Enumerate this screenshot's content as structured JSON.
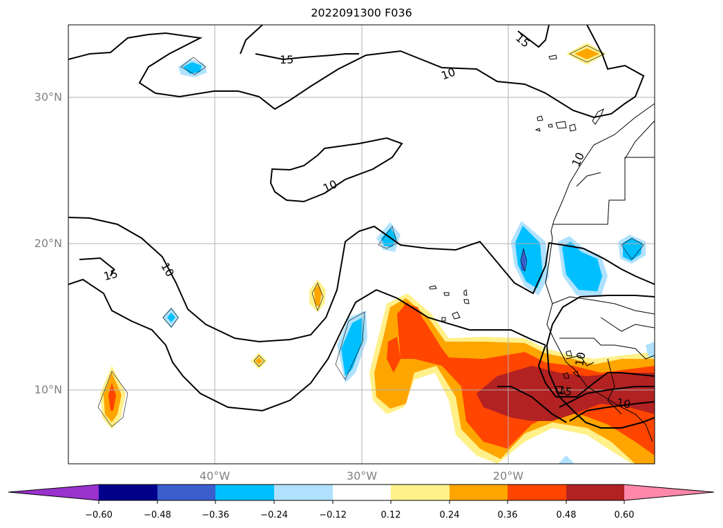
{
  "title": "2022091300 F036",
  "map": {
    "lat_labels": [
      "30°N",
      "20°N",
      "10°N"
    ],
    "lon_labels": [
      "40°W",
      "30°W",
      "20°W"
    ],
    "contour_labels": [
      "15",
      "10",
      "10",
      "10",
      "15",
      "10",
      "15",
      "10",
      "15",
      "10"
    ],
    "contour_color": "#000000",
    "grid_color": "#b0b0b0",
    "coastline_color": "#000000"
  },
  "colorbar": {
    "ticks": [
      "−0.60",
      "−0.48",
      "−0.36",
      "−0.24",
      "−0.12",
      "0.12",
      "0.24",
      "0.36",
      "0.48",
      "0.60"
    ],
    "colors": [
      "#9932cc",
      "#00008b",
      "#3a5fcd",
      "#00bfff",
      "#b0e2ff",
      "#ffffff",
      "#fff08a",
      "#ffa500",
      "#ff4500",
      "#b22222",
      "#ff88aa"
    ]
  }
}
